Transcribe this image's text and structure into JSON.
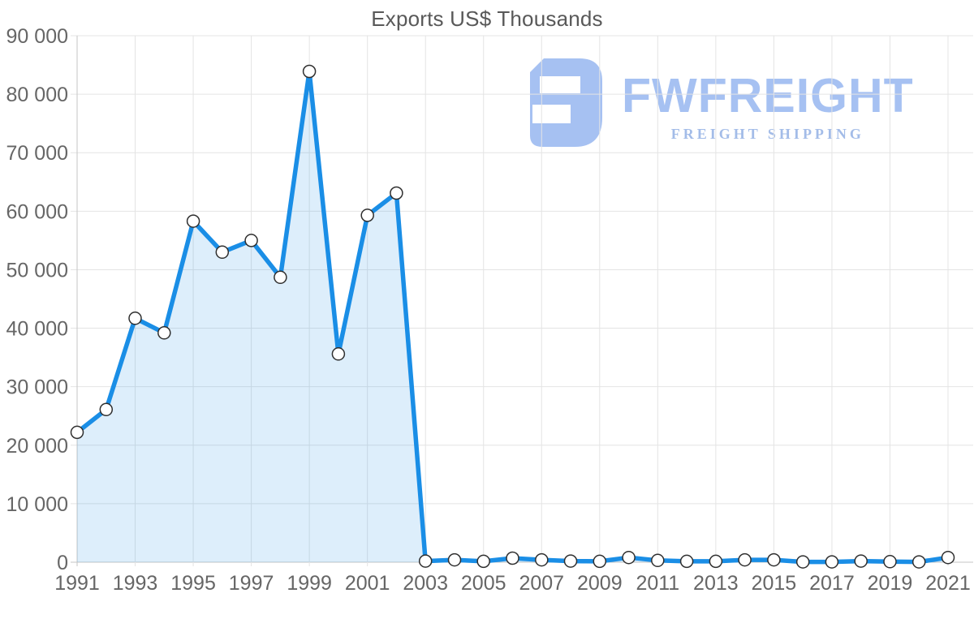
{
  "chart_data": {
    "type": "area",
    "title": "Exports US$ Thousands",
    "x": [
      1991,
      1992,
      1993,
      1994,
      1995,
      1996,
      1997,
      1998,
      1999,
      2000,
      2001,
      2002,
      2003,
      2004,
      2005,
      2006,
      2007,
      2008,
      2009,
      2010,
      2011,
      2012,
      2013,
      2014,
      2015,
      2016,
      2017,
      2018,
      2019,
      2020,
      2021
    ],
    "series": [
      {
        "name": "Exports US$ Thousands",
        "values": [
          22200,
          26100,
          41700,
          39200,
          58300,
          53000,
          55000,
          48700,
          83900,
          35600,
          59300,
          63100,
          200,
          400,
          150,
          700,
          400,
          200,
          150,
          800,
          300,
          150,
          150,
          400,
          400,
          50,
          50,
          200,
          100,
          50,
          800
        ]
      }
    ],
    "xlabel": "",
    "ylabel": "",
    "ylim": [
      0,
      90000
    ],
    "ytick_step": 10000,
    "xtick_labels": [
      "1991",
      "1993",
      "1995",
      "1997",
      "1999",
      "2001",
      "2003",
      "2005",
      "2007",
      "2009",
      "2011",
      "2013",
      "2015",
      "2017",
      "2019",
      "2021"
    ],
    "xtick_every": 2,
    "grid": true,
    "legend_position": "none",
    "line_color": "#1a8ee6",
    "area_fill_color": "rgba(26,142,230,0.15)",
    "marker_fill": "#ffffff",
    "marker_stroke": "#2f2f2f",
    "gridline_color": "#e4e4e4",
    "axis_line_color": "#c6c6c6",
    "tick_label_color": "#666666",
    "title_color": "#595959"
  },
  "watermark": {
    "brand": "FWFREIGHT",
    "subtitle": "FREIGHT SHIPPING",
    "color": "#a6c1f2"
  }
}
